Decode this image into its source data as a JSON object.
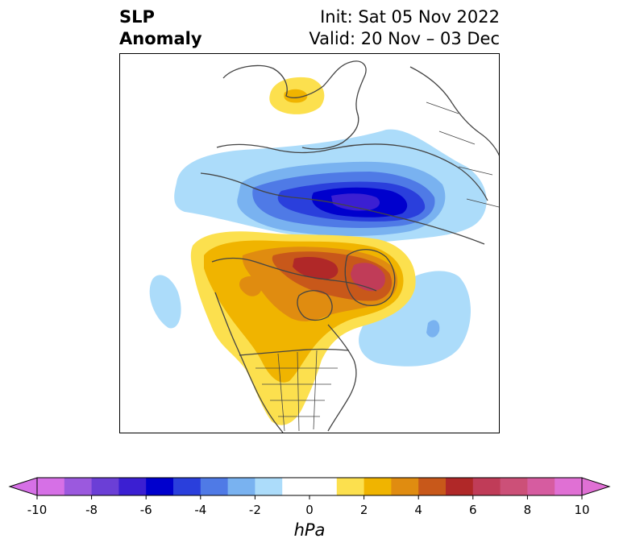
{
  "title": {
    "left_line1": "SLP",
    "left_line2": "Anomaly",
    "right_line1": "Init: Sat 05 Nov 2022",
    "right_line2": "Valid: 20 Nov – 03 Dec"
  },
  "colorbar": {
    "units": "hPa",
    "ticks": [
      "-10",
      "-8",
      "-6",
      "-4",
      "-2",
      "0",
      "2",
      "4",
      "6",
      "8",
      "10"
    ],
    "tick_values": [
      -10,
      -8,
      -6,
      -4,
      -2,
      0,
      2,
      4,
      6,
      8,
      10
    ],
    "min": -10,
    "max": 10,
    "colors": [
      "#d670e6",
      "#9b59de",
      "#6b3fd6",
      "#3b1fd2",
      "#0000cd",
      "#2a3fdc",
      "#4f7ae6",
      "#79b2f0",
      "#acdcfa",
      "#ffffff",
      "#ffffff",
      "#fce04e",
      "#f0b400",
      "#e08c10",
      "#c8581a",
      "#b02828",
      "#c03c58",
      "#cc5078",
      "#d65ca0",
      "#e070d4"
    ]
  },
  "map": {
    "projection": "polar-stereographic",
    "anomalies": [
      {
        "region": "Scandinavia / Baltic",
        "sign": "positive",
        "peak_hpa": 3
      },
      {
        "region": "Siberia / Arctic Russia",
        "sign": "negative",
        "peak_hpa": -7
      },
      {
        "region": "Alaska / Canadian Arctic / Greenland",
        "sign": "positive",
        "peak_hpa": 7
      },
      {
        "region": "Western North America",
        "sign": "positive",
        "peak_hpa": 3
      },
      {
        "region": "North Atlantic",
        "sign": "negative",
        "peak_hpa": -2
      },
      {
        "region": "North Pacific",
        "sign": "negative",
        "peak_hpa": -1
      }
    ]
  }
}
